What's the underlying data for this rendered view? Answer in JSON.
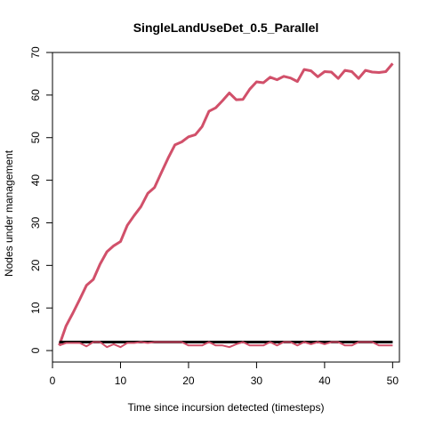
{
  "chart_data": {
    "type": "line",
    "title": "SingleLandUseDet_0.5_Parallel",
    "xlabel": "Time since incursion detected (timesteps)",
    "ylabel": "Nodes under management",
    "xlim": [
      0,
      51
    ],
    "ylim": [
      -2.7,
      70
    ],
    "xticks": [
      0,
      10,
      20,
      30,
      40,
      50
    ],
    "yticks": [
      0,
      10,
      20,
      30,
      40,
      50,
      60,
      70
    ],
    "grid": false,
    "legend": "none",
    "x": [
      1,
      2,
      3,
      4,
      5,
      6,
      7,
      8,
      9,
      10,
      11,
      12,
      13,
      14,
      15,
      16,
      17,
      18,
      19,
      20,
      21,
      22,
      23,
      24,
      25,
      26,
      27,
      28,
      29,
      30,
      31,
      32,
      33,
      34,
      35,
      36,
      37,
      38,
      39,
      40,
      41,
      42,
      43,
      44,
      45,
      46,
      47,
      48,
      49,
      50
    ],
    "series": [
      {
        "color": "#d1506a",
        "width": 3,
        "values": [
          1.2,
          5.8,
          8.8,
          12,
          15.3,
          16.7,
          20.3,
          23.2,
          24.6,
          25.6,
          29.4,
          31.7,
          33.8,
          36.9,
          38.3,
          41.8,
          45.2,
          48.3,
          49.0,
          50.2,
          50.7,
          52.6,
          56.2,
          57.0,
          58.7,
          60.5,
          58.9,
          59.0,
          61.4,
          63.1,
          62.9,
          64.2,
          63.6,
          64.4,
          64.0,
          63.2,
          66.0,
          65.7,
          64.3,
          65.5,
          65.4,
          63.9,
          65.8,
          65.5,
          63.9,
          65.8,
          65.4,
          65.3,
          65.5,
          67.4
        ]
      },
      {
        "color": "#000000",
        "width": 3,
        "values": [
          2,
          2,
          2,
          2,
          2,
          2,
          2,
          2,
          2,
          2,
          2,
          2,
          2,
          2,
          2,
          2,
          2,
          2,
          2,
          2,
          2,
          2,
          2,
          2,
          2,
          2,
          2,
          2,
          2,
          2,
          2,
          2,
          2,
          2,
          2,
          2,
          2,
          2,
          2,
          2,
          2,
          2,
          2,
          2,
          2,
          2,
          2,
          2,
          2,
          2
        ]
      },
      {
        "color": "#d1506a",
        "width": 2,
        "values": [
          1.2,
          1.8,
          1.8,
          1.8,
          1.0,
          2.0,
          2.0,
          0.8,
          1.5,
          0.8,
          1.8,
          1.8,
          2.0,
          1.8,
          2.0,
          2.0,
          2.0,
          2.0,
          2.0,
          1.2,
          1.2,
          1.2,
          2.0,
          1.2,
          1.2,
          0.8,
          1.5,
          2.0,
          1.2,
          1.2,
          1.2,
          2.0,
          1.2,
          2.0,
          2.0,
          1.2,
          2.0,
          1.5,
          2.0,
          1.5,
          2.0,
          2.0,
          1.2,
          1.2,
          2.0,
          2.0,
          2.0,
          1.2,
          1.2,
          1.2
        ]
      }
    ]
  }
}
